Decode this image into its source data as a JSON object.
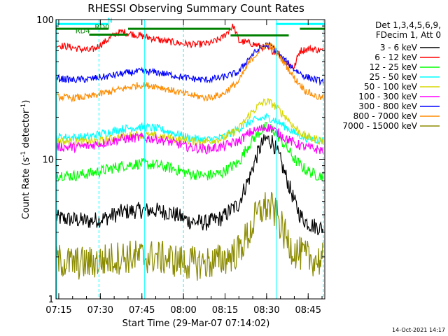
{
  "chart_data": {
    "type": "line",
    "title": "RHESSI Observing Summary Count Rates",
    "xlabel": "Start Time (29-Mar-07 07:14:02)",
    "ylabel": "Count Rate (s",
    "ylabel_sup": "-1",
    "ylabel_tail": " detector",
    "ylabel_sup2": "-1",
    "ylabel_close": ")",
    "yscale": "log",
    "ylim": [
      1,
      100
    ],
    "xlim_minutes": [
      0,
      97
    ],
    "x_ticks": [
      {
        "label": "07:15",
        "m": 1
      },
      {
        "label": "07:30",
        "m": 16
      },
      {
        "label": "07:45",
        "m": 31
      },
      {
        "label": "08:00",
        "m": 46
      },
      {
        "label": "08:15",
        "m": 61
      },
      {
        "label": "08:30",
        "m": 76
      },
      {
        "label": "08:45",
        "m": 91
      }
    ],
    "y_ticks": [
      {
        "label": "1",
        "v": 1
      },
      {
        "label": "10",
        "v": 10
      },
      {
        "label": "100",
        "v": 100
      }
    ],
    "legend_header": [
      "Det 1,3,4,5,6,9,",
      "FDecim 1, Att 0"
    ],
    "series": [
      {
        "name": "3 - 6 keV",
        "color": "#000000",
        "x": [
          0,
          6,
          12,
          18,
          24,
          30,
          36,
          42,
          48,
          54,
          60,
          66,
          70,
          72,
          74,
          76,
          78,
          80,
          82,
          84,
          86,
          88,
          90,
          92,
          94,
          96
        ],
        "y": [
          3.8,
          3.7,
          3.6,
          3.8,
          4.2,
          4.3,
          4.3,
          4.1,
          3.6,
          3.5,
          3.8,
          4.8,
          7.5,
          10,
          12.5,
          14,
          13.5,
          11,
          8.5,
          6.5,
          5,
          4,
          3.6,
          3.4,
          3.3,
          3.2
        ]
      },
      {
        "name": "6 - 12 keV",
        "color": "#ff0000",
        "x": [
          0,
          4,
          8,
          12,
          14,
          18,
          22,
          24,
          26,
          30,
          34,
          38,
          44,
          50,
          56,
          60,
          62,
          64,
          66,
          70,
          74,
          76,
          78,
          80,
          82,
          86,
          88,
          92,
          96
        ],
        "y": [
          66,
          64,
          62,
          60,
          62,
          70,
          80,
          82,
          80,
          77,
          74,
          71,
          68,
          66,
          68,
          74,
          82,
          90,
          70,
          68,
          64,
          62,
          60,
          58,
          52,
          45,
          60,
          62,
          60
        ]
      },
      {
        "name": "12 - 25 keV",
        "color": "#00ff00",
        "x": [
          0,
          6,
          12,
          18,
          24,
          30,
          36,
          42,
          48,
          54,
          60,
          66,
          70,
          74,
          76,
          78,
          82,
          86,
          90,
          94,
          96
        ],
        "y": [
          7.8,
          7.6,
          7.9,
          8.4,
          9,
          9.3,
          9.1,
          8.6,
          7.9,
          7.6,
          8,
          9.5,
          13,
          16,
          17,
          16.5,
          13,
          10,
          8.4,
          7.7,
          7.6
        ]
      },
      {
        "name": "25 - 50 keV",
        "color": "#00ffff",
        "x": [
          0,
          6,
          12,
          18,
          24,
          30,
          36,
          42,
          48,
          54,
          60,
          66,
          70,
          74,
          76,
          78,
          82,
          86,
          90,
          94,
          96
        ],
        "y": [
          14.5,
          14.3,
          14.5,
          15.5,
          16.5,
          17,
          16.7,
          15.5,
          14.2,
          13.7,
          14.3,
          16.5,
          18.5,
          19.5,
          20,
          19.5,
          17.5,
          15.5,
          14.2,
          13.8,
          13.6
        ]
      },
      {
        "name": "50 - 100 keV",
        "color": "#d7d700",
        "x": [
          0,
          8,
          16,
          24,
          30,
          36,
          44,
          52,
          60,
          66,
          70,
          74,
          76,
          78,
          82,
          86,
          90,
          96
        ],
        "y": [
          13.5,
          13.3,
          13.5,
          14.5,
          15,
          14.6,
          13.8,
          13.3,
          14,
          16.5,
          21,
          25,
          26,
          25,
          21,
          17,
          14.5,
          13.5
        ]
      },
      {
        "name": "100 - 300 keV",
        "color": "#ff00ff",
        "x": [
          0,
          6,
          12,
          18,
          24,
          30,
          36,
          42,
          48,
          54,
          60,
          66,
          70,
          74,
          76,
          78,
          82,
          86,
          90,
          94,
          96
        ],
        "y": [
          12.3,
          12.2,
          12.5,
          13.2,
          14,
          14.3,
          14,
          13.2,
          12.2,
          11.8,
          12.3,
          13.5,
          15.5,
          16.5,
          17,
          16.5,
          14.5,
          13,
          12.2,
          11.8,
          11.6
        ]
      },
      {
        "name": "300 - 800 keV",
        "color": "#0000ff",
        "x": [
          0,
          6,
          12,
          18,
          24,
          30,
          36,
          42,
          48,
          54,
          60,
          66,
          70,
          74,
          76,
          78,
          82,
          86,
          90,
          94,
          96
        ],
        "y": [
          38,
          37,
          37.5,
          39,
          41,
          42.5,
          42,
          40,
          38,
          37,
          38.5,
          42,
          54,
          63,
          66,
          64,
          52,
          44,
          39,
          37,
          36
        ]
      },
      {
        "name": "800 - 7000 keV",
        "color": "#ff8c00",
        "x": [
          0,
          6,
          12,
          18,
          24,
          30,
          36,
          42,
          48,
          54,
          60,
          66,
          70,
          74,
          76,
          78,
          82,
          86,
          90,
          94,
          96
        ],
        "y": [
          28,
          27.5,
          28,
          30,
          32,
          34,
          33.5,
          31,
          29,
          27.5,
          29,
          36,
          50,
          62,
          66,
          64,
          50,
          38,
          31,
          28,
          27.5
        ]
      },
      {
        "name": "7000 - 15000 keV",
        "color": "#8b8b00",
        "x": [
          0,
          6,
          12,
          18,
          24,
          30,
          36,
          42,
          48,
          54,
          60,
          66,
          70,
          72,
          74,
          76,
          78,
          80,
          82,
          84,
          86,
          90,
          94,
          96
        ],
        "y": [
          1.9,
          1.8,
          1.8,
          1.9,
          2,
          2,
          2,
          1.9,
          1.8,
          1.8,
          1.9,
          2.2,
          3,
          3.8,
          4.3,
          4.6,
          4.4,
          3.8,
          3,
          2.5,
          2.2,
          2,
          1.9,
          1.9
        ]
      }
    ],
    "annotations": {
      "N_label": "N",
      "RD0_label": "RD0",
      "RD4_label": "RD4"
    }
  },
  "timestamp": "14-Oct-2021 14:17"
}
